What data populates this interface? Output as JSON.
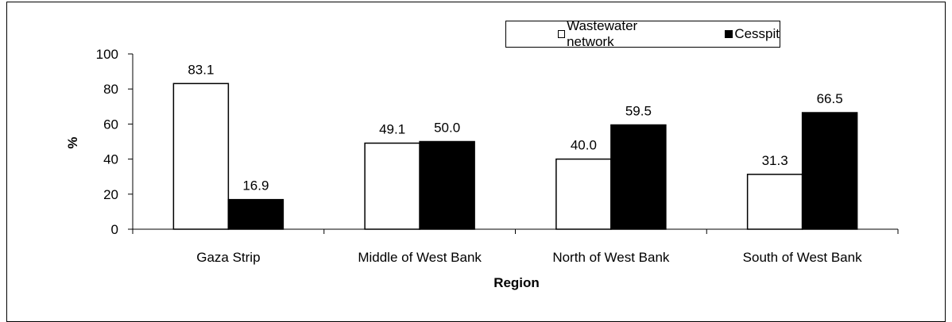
{
  "chart_data": {
    "type": "bar",
    "title": "",
    "xlabel": "Region",
    "ylabel": "%",
    "ylim": [
      0,
      100
    ],
    "yticks": [
      "0",
      "20",
      "40",
      "60",
      "80",
      "100"
    ],
    "categories": [
      "Gaza Strip",
      "Middle of West Bank",
      "North of West Bank",
      "South of West Bank"
    ],
    "series": [
      {
        "name": "Wastewater network",
        "color": "#ffffff",
        "values": [
          83.1,
          49.1,
          40.0,
          31.3
        ],
        "labels": [
          "83.1",
          "49.1",
          "40.0",
          "31.3"
        ]
      },
      {
        "name": "Cesspit",
        "color": "#000000",
        "values": [
          16.9,
          50.0,
          59.5,
          66.5
        ],
        "labels": [
          "16.9",
          "50.0",
          "59.5",
          "66.5"
        ]
      }
    ],
    "legend_position": "top-right",
    "grid": false
  }
}
